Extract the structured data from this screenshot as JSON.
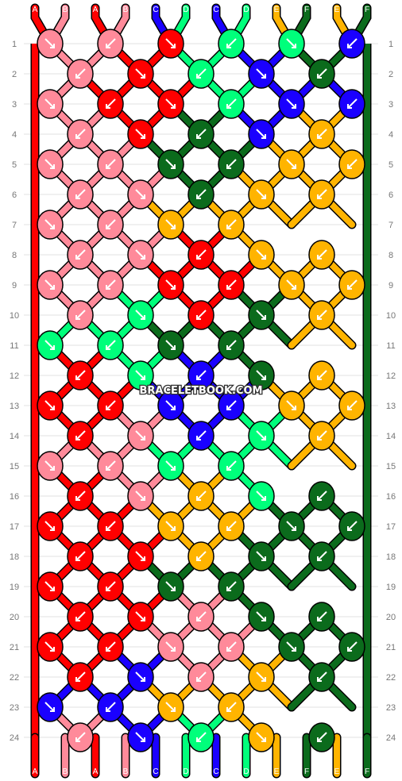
{
  "watermark": "BRACELETBOOK.COM",
  "rows": [
    "1",
    "2",
    "3",
    "4",
    "5",
    "6",
    "7",
    "8",
    "9",
    "10",
    "11",
    "12",
    "13",
    "14",
    "15",
    "16",
    "17",
    "18",
    "19",
    "20",
    "21",
    "22",
    "23",
    "24"
  ],
  "strand_labels_top": [
    "A",
    "B",
    "A",
    "B",
    "C",
    "D",
    "C",
    "D",
    "E",
    "F",
    "E",
    "F"
  ],
  "strand_labels_bottom": [
    "A",
    "B",
    "A",
    "B",
    "C",
    "D",
    "C",
    "D",
    "E",
    "F",
    "E",
    "F"
  ],
  "strand_colors": [
    "red",
    "pink",
    "red",
    "pink",
    "blue",
    "light-green",
    "blue",
    "light-green",
    "yellow",
    "dark-green",
    "yellow",
    "dark-green"
  ],
  "palette": {
    "A": "#ff0000",
    "B": "#ff8a9a",
    "C": "#1a00ff",
    "D": "#00ff7b",
    "E": "#ffb400",
    "F": "#0b6b1c"
  },
  "knots": [
    [
      "B",
      "B",
      "A",
      "D",
      "D",
      "C",
      "F",
      "F"
    ],
    [
      "B",
      "A",
      "D",
      "C",
      "F",
      "F"
    ],
    [
      "B",
      "A",
      "A",
      "D",
      "C",
      "C",
      "F"
    ],
    [
      "B",
      "A",
      "F",
      "C",
      "E"
    ],
    [
      "B",
      "B",
      "F",
      "F",
      "E",
      "E"
    ],
    [
      "B",
      "B",
      "F",
      "E",
      "E"
    ],
    [
      "B",
      "B",
      "E",
      "E"
    ],
    [
      "B",
      "B",
      "A",
      "E",
      "E"
    ],
    [
      "B",
      "B",
      "A",
      "A",
      "E",
      "E"
    ],
    [
      "B",
      "D",
      "A",
      "F",
      "E"
    ],
    [
      "D",
      "D",
      "F",
      "F"
    ],
    [
      "A",
      "D",
      "C",
      "F",
      "E"
    ],
    [
      "A",
      "A",
      "C",
      "C",
      "E",
      "E"
    ],
    [
      "A",
      "B",
      "C",
      "D",
      "E"
    ],
    [
      "B",
      "B",
      "D",
      "D"
    ],
    [
      "A",
      "B",
      "E",
      "D",
      "F"
    ],
    [
      "A",
      "A",
      "E",
      "E",
      "F",
      "F"
    ],
    [
      "A",
      "A",
      "E",
      "F",
      "F"
    ],
    [
      "A",
      "A",
      "F",
      "F"
    ],
    [
      "A",
      "A",
      "B",
      "F",
      "F"
    ],
    [
      "A",
      "A",
      "B",
      "B",
      "F",
      "F"
    ],
    [
      "A",
      "C",
      "B",
      "E",
      "F"
    ],
    [
      "C",
      "C",
      "E",
      "E"
    ],
    [
      "B",
      "C",
      "D",
      "E",
      "F"
    ]
  ]
}
